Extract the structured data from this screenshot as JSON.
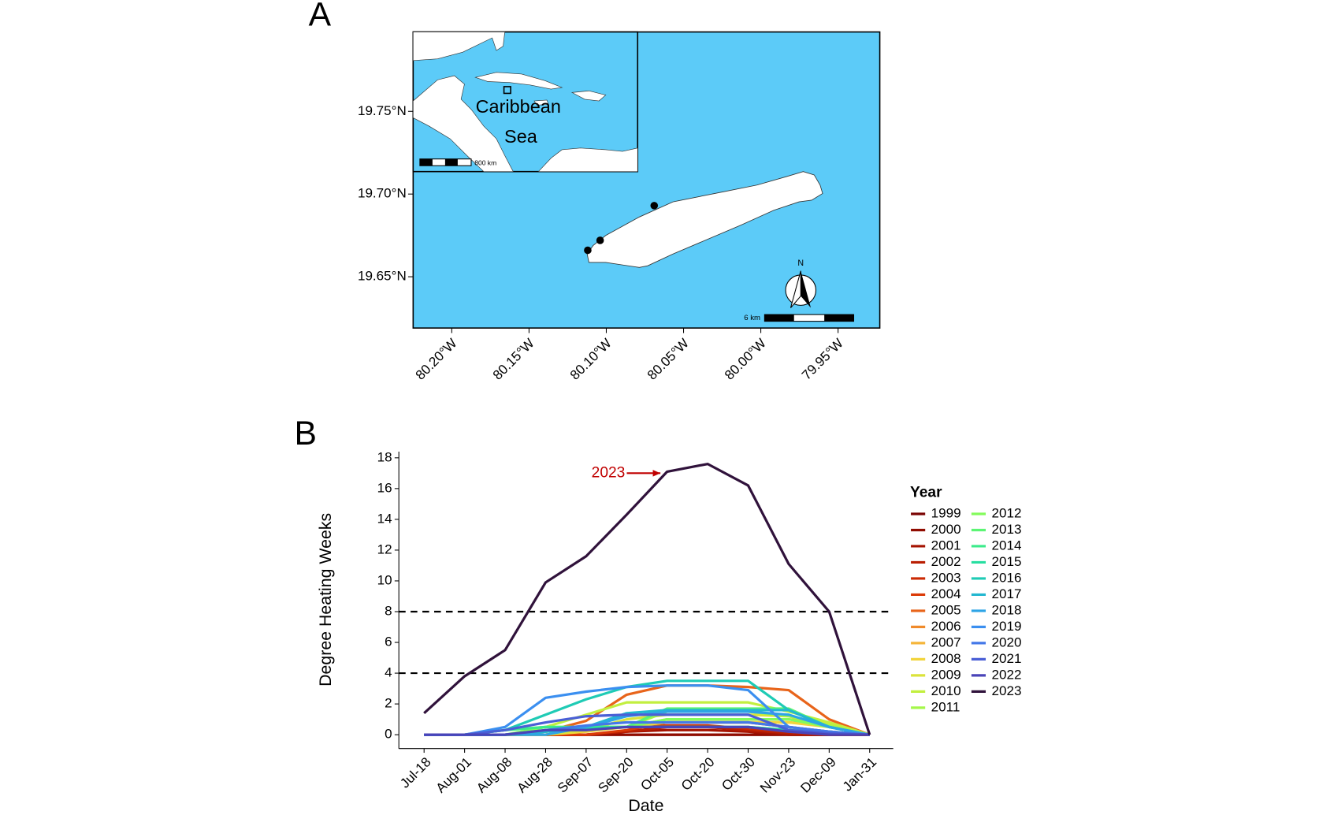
{
  "chart_data": [
    {
      "type": "map",
      "panel": "A",
      "xlim": [
        -80.225,
        -79.923
      ],
      "ylim": [
        19.619,
        19.798
      ],
      "xticks": [
        {
          "value": -80.2,
          "label": "80.20°W"
        },
        {
          "value": -80.15,
          "label": "80.15°W"
        },
        {
          "value": -80.1,
          "label": "80.10°W"
        },
        {
          "value": -80.05,
          "label": "80.05°W"
        },
        {
          "value": -80.0,
          "label": "80.00°W"
        },
        {
          "value": -79.95,
          "label": "79.95°W"
        }
      ],
      "yticks": [
        {
          "value": 19.65,
          "label": "19.65°N"
        },
        {
          "value": 19.7,
          "label": "19.70°N"
        },
        {
          "value": 19.75,
          "label": "19.75°N"
        }
      ],
      "points": {
        "lon": [
          -80.069,
          -80.104,
          -80.112
        ],
        "lat": [
          19.693,
          19.672,
          19.666
        ]
      },
      "inset_labels": [
        "Caribbean",
        "Sea"
      ],
      "inset_scale": "800 km",
      "scale": "6 km",
      "north": "N",
      "sea_color": "#5ccbf8"
    },
    {
      "type": "line",
      "panel": "B",
      "xlabel": "Date",
      "ylabel": "Degree Heating Weeks",
      "legend_title": "Year",
      "categories": [
        "Jul-18",
        "Aug-01",
        "Aug-08",
        "Aug-28",
        "Sep-07",
        "Sep-20",
        "Oct-05",
        "Oct-20",
        "Oct-30",
        "Nov-23",
        "Dec-09",
        "Jan-31"
      ],
      "ylim": [
        -0.9,
        18.4
      ],
      "yticks": [
        0,
        2,
        4,
        6,
        8,
        10,
        12,
        14,
        16,
        18
      ],
      "hlines": [
        4,
        8
      ],
      "annotation": {
        "text": "2023",
        "x": "Oct-05",
        "y": 17,
        "color": "#c00000"
      },
      "series": [
        {
          "name": "1999",
          "color": "#7a0403",
          "values": [
            0,
            0,
            0,
            0,
            0,
            0,
            0,
            0,
            0,
            0,
            0,
            0
          ]
        },
        {
          "name": "2000",
          "color": "#900c00",
          "values": [
            0,
            0,
            0,
            0,
            0,
            0,
            0,
            0,
            0,
            0,
            0,
            0
          ]
        },
        {
          "name": "2001",
          "color": "#a51301",
          "values": [
            0,
            0,
            0,
            0,
            0,
            0.2,
            0.3,
            0.3,
            0.2,
            0,
            0,
            0
          ]
        },
        {
          "name": "2002",
          "color": "#b91e02",
          "values": [
            0,
            0,
            0,
            0,
            0,
            0.2,
            0.5,
            0.5,
            0.3,
            0.1,
            0,
            0
          ]
        },
        {
          "name": "2003",
          "color": "#cb2a04",
          "values": [
            0,
            0,
            0,
            0,
            0.3,
            0.5,
            0.6,
            0.6,
            0.4,
            0.2,
            0,
            0
          ]
        },
        {
          "name": "2004",
          "color": "#db3a07",
          "values": [
            0,
            0,
            0,
            0,
            0,
            0.3,
            0.8,
            0.8,
            0.8,
            0.5,
            0.2,
            0
          ]
        },
        {
          "name": "2005",
          "color": "#e8641a",
          "values": [
            0,
            0,
            0,
            0.2,
            0.9,
            2.6,
            3.2,
            3.2,
            3.1,
            2.9,
            1.0,
            0
          ]
        },
        {
          "name": "2006",
          "color": "#f08a2a",
          "values": [
            0,
            0,
            0,
            0,
            0.3,
            0.5,
            0.8,
            0.8,
            0.8,
            0.8,
            0.6,
            0
          ]
        },
        {
          "name": "2007",
          "color": "#f5b53a",
          "values": [
            0,
            0,
            0,
            0.2,
            0.5,
            0.5,
            1.0,
            1.0,
            1.0,
            1.0,
            0.8,
            0
          ]
        },
        {
          "name": "2008",
          "color": "#f2d43c",
          "values": [
            0,
            0,
            0,
            0,
            0.2,
            0.5,
            0.8,
            0.8,
            0.8,
            0.8,
            0.5,
            0
          ]
        },
        {
          "name": "2009",
          "color": "#dbe33b",
          "values": [
            0,
            0,
            0,
            0,
            0.3,
            1.0,
            1.3,
            1.3,
            1.3,
            1.2,
            0.7,
            0
          ]
        },
        {
          "name": "2010",
          "color": "#c2ef3f",
          "values": [
            0,
            0,
            0.3,
            0.5,
            1.3,
            2.1,
            2.1,
            2.1,
            2.1,
            1.5,
            0.8,
            0
          ]
        },
        {
          "name": "2011",
          "color": "#a4f74a",
          "values": [
            0,
            0,
            0,
            0.2,
            0.5,
            0.5,
            1.5,
            1.5,
            1.5,
            1.2,
            0.6,
            0
          ]
        },
        {
          "name": "2012",
          "color": "#83fb5c",
          "values": [
            0,
            0,
            0,
            0.5,
            0.5,
            0.5,
            1.0,
            1.0,
            1.0,
            1.0,
            0.5,
            0
          ]
        },
        {
          "name": "2013",
          "color": "#5cf574",
          "values": [
            0,
            0,
            0,
            0.3,
            0.5,
            0.5,
            1.7,
            1.7,
            1.7,
            1.7,
            0.5,
            0
          ]
        },
        {
          "name": "2014",
          "color": "#3ceb8b",
          "values": [
            0,
            0,
            0.3,
            0.5,
            0.5,
            0.5,
            0.5,
            0.5,
            0.5,
            0.3,
            0.2,
            0
          ]
        },
        {
          "name": "2015",
          "color": "#27dea0",
          "values": [
            0,
            0,
            0,
            0.2,
            0.4,
            0.5,
            0.5,
            0.5,
            0.5,
            0.3,
            0.1,
            0
          ]
        },
        {
          "name": "2016",
          "color": "#1fcbb5",
          "values": [
            0,
            0,
            0.3,
            1.3,
            2.3,
            3.1,
            3.5,
            3.5,
            3.5,
            1.6,
            0.5,
            0
          ]
        },
        {
          "name": "2017",
          "color": "#23b7d0",
          "values": [
            0,
            0,
            0,
            0.2,
            0.5,
            1.4,
            1.6,
            1.6,
            1.6,
            1.6,
            0.5,
            0
          ]
        },
        {
          "name": "2018",
          "color": "#2ea4e6",
          "values": [
            0,
            0,
            0,
            0,
            0.5,
            1.2,
            1.5,
            1.5,
            1.5,
            1.3,
            0.5,
            0
          ]
        },
        {
          "name": "2019",
          "color": "#3b8ff0",
          "values": [
            0,
            0,
            0.5,
            2.4,
            2.8,
            3.1,
            3.2,
            3.2,
            2.9,
            0.5,
            0.2,
            0
          ]
        },
        {
          "name": "2020",
          "color": "#4478e8",
          "values": [
            0,
            0,
            0,
            0.3,
            0.6,
            0.8,
            0.8,
            0.8,
            0.8,
            0.5,
            0.2,
            0
          ]
        },
        {
          "name": "2021",
          "color": "#4a5fd6",
          "values": [
            0,
            0,
            0.3,
            0.8,
            1.2,
            1.3,
            1.3,
            1.3,
            1.3,
            0.3,
            0.1,
            0
          ]
        },
        {
          "name": "2022",
          "color": "#4a44b8",
          "values": [
            0,
            0,
            0,
            0.3,
            0.3,
            0.5,
            0.5,
            0.5,
            0.5,
            0.2,
            0,
            0
          ]
        },
        {
          "name": "2023",
          "color": "#30123b",
          "values": [
            1.4,
            3.8,
            5.5,
            9.9,
            11.6,
            14.3,
            17.1,
            17.6,
            16.2,
            11.1,
            8.0,
            0
          ]
        }
      ]
    }
  ]
}
